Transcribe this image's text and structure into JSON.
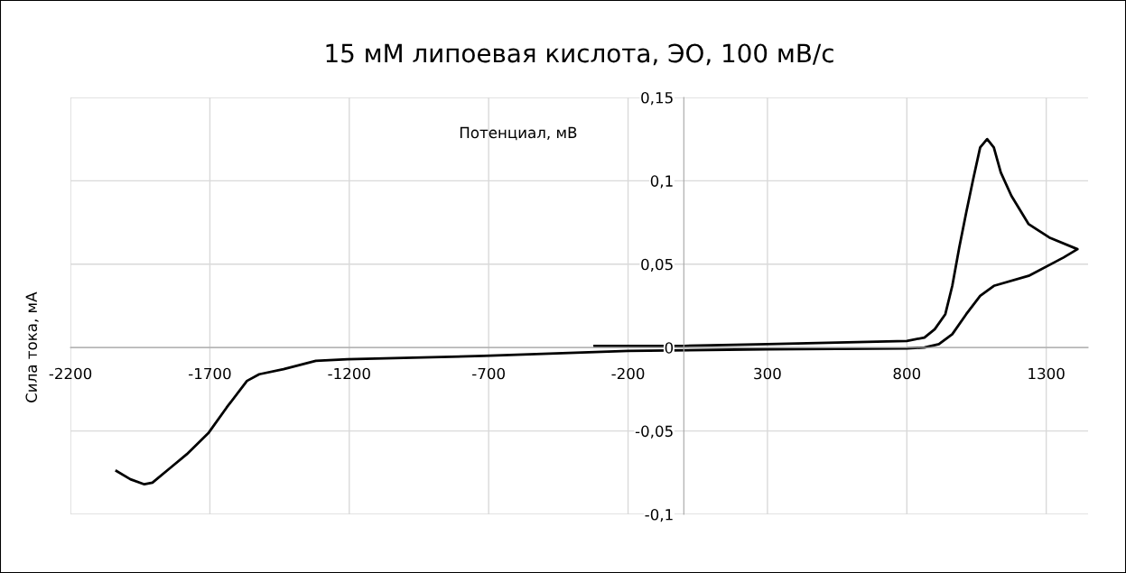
{
  "chart_data": {
    "type": "line",
    "title": "15 мМ липоевая кислота, ЭО, 100 мВ/с",
    "xlabel": "Потенциал, мВ",
    "ylabel": "Сила тока, мА",
    "series": [
      {
        "color": "#000000",
        "x": [
          -320,
          0,
          300,
          800,
          863,
          900,
          938,
          963,
          988,
          1013,
          1038,
          1063,
          1088,
          1112,
          1137,
          1175,
          1237,
          1311,
          1412,
          1362,
          1237,
          1112,
          1063,
          1013,
          963,
          915,
          863,
          800,
          300,
          -200,
          -718,
          -1207,
          -1320,
          -1436,
          -1523,
          -1567,
          -1640,
          -1704,
          -1783,
          -1841,
          -1906,
          -1935,
          -1985,
          -2035
        ],
        "values": [
          0.001,
          0.001,
          0.002,
          0.004,
          0.006,
          0.011,
          0.02,
          0.037,
          0.06,
          0.081,
          0.101,
          0.12,
          0.125,
          0.12,
          0.105,
          0.091,
          0.074,
          0.066,
          0.059,
          0.054,
          0.043,
          0.037,
          0.031,
          0.02,
          0.008,
          0.002,
          0.0,
          -0.0005,
          -0.001,
          -0.002,
          -0.005,
          -0.007,
          -0.008,
          -0.013,
          -0.016,
          -0.02,
          -0.036,
          -0.051,
          -0.064,
          -0.072,
          -0.081,
          -0.082,
          -0.079,
          -0.074
        ]
      }
    ],
    "xlim": [
      -2200,
      1450
    ],
    "xticks": [
      -2200,
      -1700,
      -1200,
      -700,
      -200,
      300,
      800,
      1300
    ],
    "ylim": [
      -0.1,
      0.15
    ],
    "yticks": [
      {
        "value": -0.1,
        "label": "-0,1"
      },
      {
        "value": -0.05,
        "label": "-0,05"
      },
      {
        "value": 0,
        "label": "0"
      },
      {
        "value": 0.05,
        "label": "0,05"
      },
      {
        "value": 0.1,
        "label": "0,1"
      },
      {
        "value": 0.15,
        "label": "0,15"
      }
    ],
    "grid": true,
    "legend": false,
    "marker": "none",
    "line_style": "solid"
  }
}
